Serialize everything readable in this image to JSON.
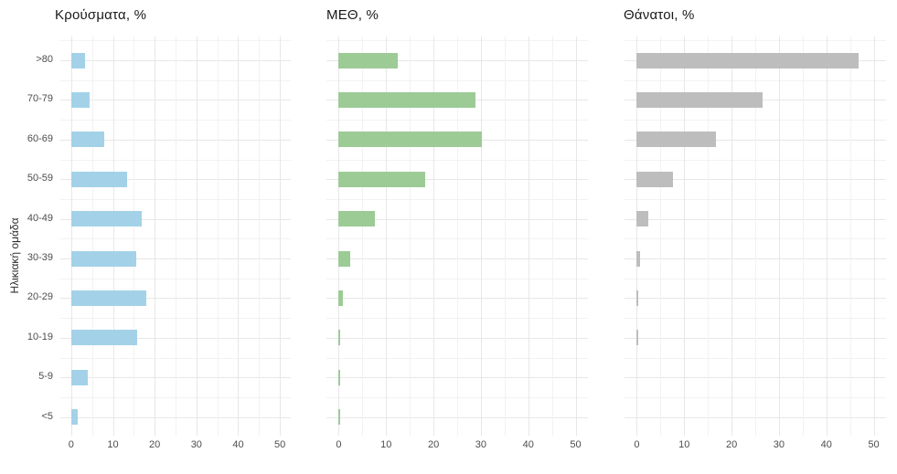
{
  "page": {
    "background": "#ffffff"
  },
  "y_axis": {
    "title": "Ηλικιακή ομάδα",
    "categories": [
      ">80",
      "70-79",
      "60-69",
      "50-59",
      "40-49",
      "30-39",
      "20-29",
      "10-19",
      "5-9",
      "<5"
    ]
  },
  "x_axis": {
    "tick_labels": [
      "0",
      "10",
      "20",
      "30",
      "40",
      "50"
    ],
    "tick_values": [
      0,
      10,
      20,
      30,
      40,
      50
    ],
    "minor_values": [
      5,
      15,
      25,
      35,
      45
    ],
    "render_min": -2.6,
    "render_max": 52.6
  },
  "chart_data": [
    {
      "type": "bar",
      "orientation": "horizontal",
      "title": "Κρούσματα, %",
      "color": "#a3d2e8",
      "xlim": [
        0,
        50
      ],
      "grid": true,
      "categories": [
        ">80",
        "70-79",
        "60-69",
        "50-59",
        "40-49",
        "30-39",
        "20-29",
        "10-19",
        "5-9",
        "<5"
      ],
      "values": [
        3.4,
        4.4,
        8.0,
        13.3,
        16.9,
        15.5,
        18.1,
        15.7,
        4.0,
        1.6
      ]
    },
    {
      "type": "bar",
      "orientation": "horizontal",
      "title": "ΜΕΘ, %",
      "color": "#9ccb96",
      "xlim": [
        0,
        50
      ],
      "grid": true,
      "categories": [
        ">80",
        "70-79",
        "60-69",
        "50-59",
        "40-49",
        "30-39",
        "20-29",
        "10-19",
        "5-9",
        "<5"
      ],
      "values": [
        12.4,
        28.8,
        30.2,
        18.3,
        7.7,
        2.4,
        0.8,
        0.3,
        0.2,
        0.2
      ]
    },
    {
      "type": "bar",
      "orientation": "horizontal",
      "title": "Θάνατοι, %",
      "color": "#bdbdbd",
      "xlim": [
        0,
        50
      ],
      "grid": true,
      "categories": [
        ">80",
        "70-79",
        "60-69",
        "50-59",
        "40-49",
        "30-39",
        "20-29",
        "10-19",
        "5-9",
        "<5"
      ],
      "values": [
        46.9,
        26.5,
        16.7,
        7.6,
        2.5,
        0.7,
        0.2,
        0.2,
        0,
        0
      ]
    }
  ],
  "style": {
    "grid_major": "#e7e7e7",
    "grid_minor": "#f2f2f2",
    "tick_label_color": "#4d4d4d",
    "title_color": "#1a1a1a"
  }
}
